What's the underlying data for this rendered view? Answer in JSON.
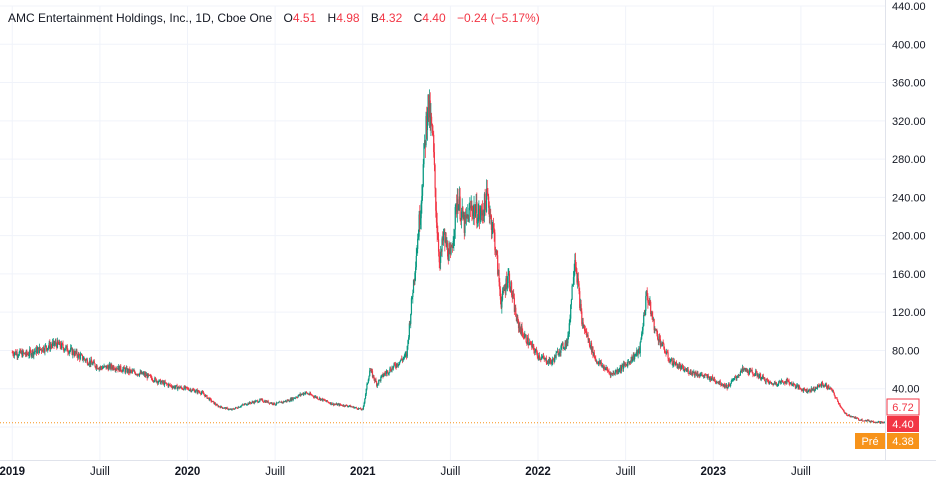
{
  "legend": {
    "title": "AMC Entertainment Holdings, Inc., 1D, Cboe One",
    "o_label": "O",
    "o_value": "4.51",
    "h_label": "H",
    "h_value": "4.98",
    "b_label": "B",
    "b_value": "4.32",
    "c_label": "C",
    "c_value": "4.40",
    "change": "−0.24 (−5.17%)"
  },
  "colors": {
    "up": "#089981",
    "down": "#f23645",
    "pre": "#f7931a",
    "dotted": "#f7931a",
    "grid": "#f0f3fa"
  },
  "chart_data": {
    "type": "candlestick",
    "yaxis": {
      "ticks": [
        "0",
        "40.00",
        "80.00",
        "120.00",
        "160.00",
        "200.00",
        "240.00",
        "280.00",
        "320.00",
        "360.00",
        "400.00",
        "440.00"
      ],
      "ylim": [
        0,
        440
      ]
    },
    "xaxis": {
      "ticks": [
        "2019",
        "Juill",
        "2020",
        "Juill",
        "2021",
        "Juill",
        "2022",
        "Juill",
        "2023",
        "Juill"
      ],
      "bold": [
        "2019",
        "2020",
        "2021",
        "2022",
        "2023"
      ]
    },
    "price_markers": [
      {
        "label": "6.72",
        "value": 6.72,
        "style": "outline"
      },
      {
        "label": "4.40",
        "value": 4.4,
        "style": "filled"
      },
      {
        "label": "4.38",
        "value": 4.38,
        "tag": "Pré",
        "style": "pre"
      }
    ],
    "series": [
      {
        "x": [
          2019.0,
          2019.08,
          2019.17,
          2019.25,
          2019.33,
          2019.42,
          2019.5,
          2019.58,
          2019.67,
          2019.75,
          2019.83,
          2019.92,
          2020.0,
          2020.08,
          2020.17,
          2020.25,
          2020.33,
          2020.42,
          2020.5,
          2020.58,
          2020.67,
          2020.75,
          2020.83,
          2020.92,
          2021.0,
          2021.04,
          2021.08,
          2021.12,
          2021.17,
          2021.25,
          2021.33,
          2021.37,
          2021.4,
          2021.42,
          2021.44,
          2021.46,
          2021.5,
          2021.54,
          2021.58,
          2021.62,
          2021.67,
          2021.71,
          2021.75,
          2021.79,
          2021.83,
          2021.88,
          2021.92,
          2021.96,
          2022.0,
          2022.04,
          2022.08,
          2022.12,
          2022.17,
          2022.21,
          2022.25,
          2022.29,
          2022.33,
          2022.42,
          2022.5,
          2022.58,
          2022.62,
          2022.67,
          2022.71,
          2022.75,
          2022.83,
          2022.92,
          2023.0,
          2023.08,
          2023.17,
          2023.25,
          2023.33,
          2023.42,
          2023.5,
          2023.54,
          2023.58,
          2023.62,
          2023.67,
          2023.75,
          2023.83
        ],
        "close": [
          78,
          76,
          82,
          87,
          80,
          70,
          62,
          63,
          58,
          55,
          48,
          42,
          40,
          36,
          22,
          18,
          24,
          28,
          24,
          28,
          36,
          30,
          24,
          22,
          18,
          60,
          45,
          55,
          62,
          75,
          230,
          340,
          300,
          220,
          170,
          200,
          175,
          240,
          210,
          230,
          220,
          240,
          200,
          130,
          160,
          110,
          95,
          85,
          75,
          70,
          68,
          80,
          90,
          180,
          110,
          90,
          70,
          55,
          65,
          80,
          140,
          100,
          85,
          70,
          60,
          55,
          50,
          42,
          60,
          55,
          45,
          48,
          40,
          38,
          40,
          45,
          40,
          14,
          8
        ],
        "high_offset": 6,
        "low_offset": 6
      }
    ]
  },
  "bottom": {
    "last_tail_close": 4.4
  }
}
